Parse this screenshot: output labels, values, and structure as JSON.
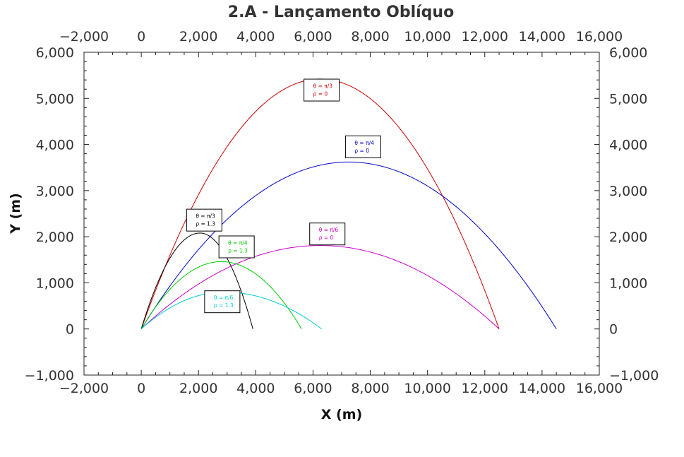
{
  "chart_data": {
    "type": "line",
    "title": "2.A - Lançamento Oblíquo",
    "xlabel": "X (m)",
    "ylabel": "Y (m)",
    "xlim": [
      -2000,
      16000
    ],
    "ylim": [
      -1000,
      6000
    ],
    "x_ticks": [
      -2000,
      0,
      2000,
      4000,
      6000,
      8000,
      10000,
      12000,
      14000,
      16000
    ],
    "x_tick_labels": [
      "−2,000",
      "0",
      "2,000",
      "4,000",
      "6,000",
      "8,000",
      "10,000",
      "12,000",
      "14,000",
      "16,000"
    ],
    "y_ticks": [
      -1000,
      0,
      1000,
      2000,
      3000,
      4000,
      5000,
      6000
    ],
    "y_tick_labels": [
      "−1,000",
      "0",
      "1,000",
      "2,000",
      "3,000",
      "4,000",
      "5,000",
      "6,000"
    ],
    "grid": false,
    "series": [
      {
        "color": "#cc0000",
        "range": 12500,
        "peak_x": 6250,
        "max_height": 5420,
        "label_line1": "θ = π/3",
        "label_line2": "ρ = 0",
        "label_at": [
          6300,
          5180
        ]
      },
      {
        "color": "#0000cc",
        "range": 14500,
        "peak_x": 7250,
        "max_height": 3620,
        "label_line1": "θ = π/4",
        "label_line2": "ρ = 0",
        "label_at": [
          7750,
          3950
        ]
      },
      {
        "color": "#cc00cc",
        "range": 12500,
        "peak_x": 6250,
        "max_height": 1810,
        "label_line1": "θ = π/6",
        "label_line2": "ρ = 0",
        "label_at": [
          6500,
          2060
        ]
      },
      {
        "color": "#000000",
        "range": 3900,
        "peak_x": 2050,
        "max_height": 2080,
        "label_line1": "θ = π/3",
        "label_line2": "ρ = 1.3",
        "label_at": [
          2200,
          2360
        ]
      },
      {
        "color": "#00cc00",
        "range": 5600,
        "peak_x": 2800,
        "max_height": 1460,
        "label_line1": "θ = π/4",
        "label_line2": "ρ = 1.3",
        "label_at": [
          3330,
          1780
        ]
      },
      {
        "color": "#00cccc",
        "range": 6300,
        "peak_x": 2900,
        "max_height": 800,
        "label_line1": "θ = π/6",
        "label_line2": "ρ = 1.3",
        "label_at": [
          2830,
          590
        ]
      }
    ]
  }
}
